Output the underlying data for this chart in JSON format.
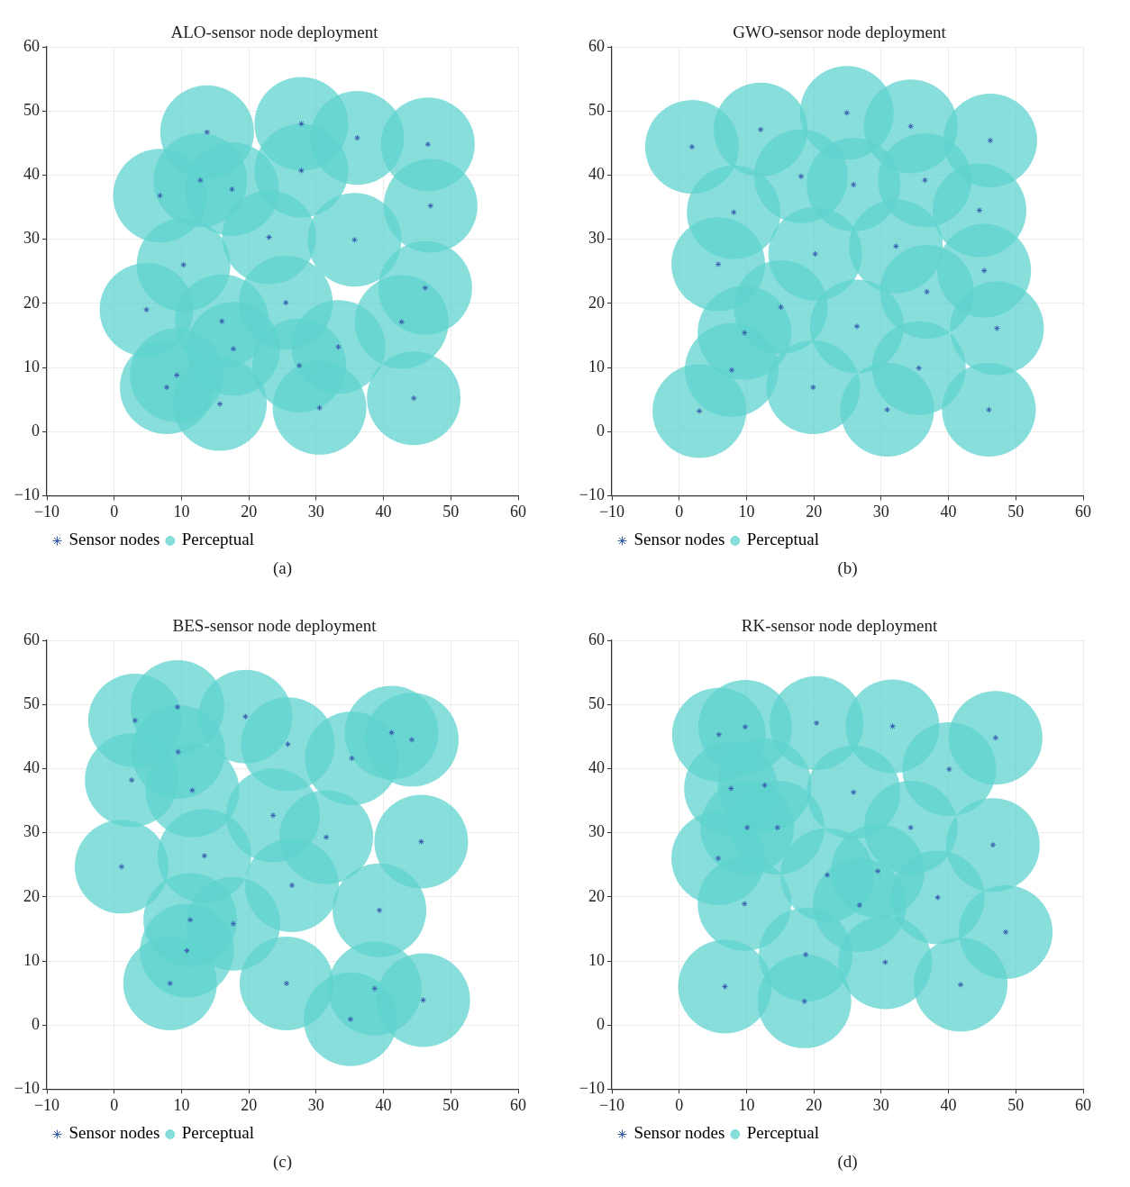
{
  "chart_data": [
    {
      "type": "scatter",
      "title": "ALO-sensor node deployment",
      "annotations": [
        "(a)"
      ],
      "xlim": [
        -10,
        60
      ],
      "ylim": [
        -10,
        60
      ],
      "xticks": [
        -10,
        0,
        10,
        20,
        30,
        40,
        50,
        60
      ],
      "yticks": [
        -10,
        0,
        10,
        20,
        30,
        40,
        50,
        60
      ],
      "grid": true,
      "legend": "bottom left",
      "x": [
        13.8,
        27.8,
        36.1,
        46.6,
        12.8,
        6.8,
        17.5,
        27.8,
        47.0,
        23.0,
        35.7,
        10.3,
        4.8,
        25.5,
        46.2,
        16.0,
        42.7,
        17.7,
        33.3,
        27.5,
        9.3,
        7.8,
        15.7,
        30.5,
        44.5
      ],
      "series": [
        {
          "name": "Sensor nodes",
          "type": "scatter",
          "marker": "cross",
          "color": "#3a5fb0",
          "values": [
            46.7,
            48.0,
            45.8,
            44.8,
            39.2,
            36.8,
            37.8,
            40.7,
            35.2,
            30.3,
            29.9,
            26.0,
            19.0,
            20.1,
            22.4,
            17.2,
            17.1,
            12.9,
            13.2,
            10.3,
            8.8,
            6.9,
            4.3,
            3.7,
            5.2
          ]
        },
        {
          "name": "Perceptual",
          "type": "bubble",
          "marker": "circle",
          "color": "#5fd3cd",
          "values": [
            46.7,
            48.0,
            45.8,
            44.8,
            39.2,
            36.8,
            37.8,
            40.7,
            35.2,
            30.3,
            29.9,
            26.0,
            19.0,
            20.1,
            22.4,
            17.2,
            17.1,
            12.9,
            13.2,
            10.3,
            8.8,
            6.9,
            4.3,
            3.7,
            5.2
          ],
          "sizes": [
            1,
            1,
            1,
            1,
            1,
            1,
            1,
            1,
            1,
            1,
            1,
            1,
            1,
            1,
            1,
            1,
            1,
            1,
            1,
            1,
            1,
            1,
            1,
            1,
            1
          ]
        }
      ]
    },
    {
      "type": "scatter",
      "title": "GWO-sensor node deployment",
      "annotations": [
        "(b)"
      ],
      "xlim": [
        -10,
        60
      ],
      "ylim": [
        -10,
        60
      ],
      "xticks": [
        -10,
        0,
        10,
        20,
        30,
        40,
        50,
        60
      ],
      "yticks": [
        -10,
        0,
        10,
        20,
        30,
        40,
        50,
        60
      ],
      "grid": true,
      "legend": "bottom left",
      "x": [
        1.9,
        12.1,
        24.9,
        34.4,
        46.2,
        18.1,
        25.9,
        36.5,
        8.1,
        44.6,
        20.2,
        32.2,
        5.8,
        45.3,
        36.8,
        15.1,
        26.4,
        47.2,
        9.7,
        7.8,
        35.6,
        19.9,
        3.0,
        30.9,
        46.0
      ],
      "series": [
        {
          "name": "Sensor nodes",
          "type": "scatter",
          "marker": "cross",
          "color": "#3a5fb0",
          "values": [
            44.4,
            47.1,
            49.7,
            47.6,
            45.4,
            39.8,
            38.5,
            39.2,
            34.2,
            34.5,
            27.7,
            28.9,
            26.1,
            25.1,
            21.8,
            19.4,
            16.4,
            16.1,
            15.4,
            9.6,
            9.9,
            6.9,
            3.2,
            3.4,
            3.4
          ]
        },
        {
          "name": "Perceptual",
          "type": "bubble",
          "marker": "circle",
          "color": "#5fd3cd",
          "values": [
            44.4,
            47.1,
            49.7,
            47.6,
            45.4,
            39.8,
            38.5,
            39.2,
            34.2,
            34.5,
            27.7,
            28.9,
            26.1,
            25.1,
            21.8,
            19.4,
            16.4,
            16.1,
            15.4,
            9.6,
            9.9,
            6.9,
            3.2,
            3.4,
            3.4
          ],
          "sizes": [
            1,
            1,
            1,
            1,
            1,
            1,
            1,
            1,
            1,
            1,
            1,
            1,
            1,
            1,
            1,
            1,
            1,
            1,
            1,
            1,
            1,
            1,
            1,
            1,
            1
          ]
        }
      ]
    },
    {
      "type": "scatter",
      "title": "BES-sensor node deployment",
      "annotations": [
        "(c)"
      ],
      "xlim": [
        -10,
        60
      ],
      "ylim": [
        -10,
        60
      ],
      "xticks": [
        -10,
        0,
        10,
        20,
        30,
        40,
        50,
        60
      ],
      "yticks": [
        -10,
        0,
        10,
        20,
        30,
        40,
        50,
        60
      ],
      "grid": true,
      "legend": "bottom left",
      "x": [
        3.1,
        9.4,
        19.5,
        25.8,
        35.3,
        41.2,
        44.2,
        9.5,
        2.6,
        11.6,
        23.6,
        31.5,
        45.6,
        1.1,
        13.4,
        26.4,
        39.4,
        11.3,
        17.7,
        10.8,
        8.3,
        25.6,
        38.7,
        45.9,
        35.1
      ],
      "series": [
        {
          "name": "Sensor nodes",
          "type": "scatter",
          "marker": "cross",
          "color": "#3a5fb0",
          "values": [
            47.5,
            49.6,
            48.1,
            43.8,
            41.6,
            45.6,
            44.5,
            42.6,
            38.2,
            36.6,
            32.7,
            29.3,
            28.6,
            24.7,
            26.4,
            21.8,
            17.9,
            16.4,
            15.8,
            11.6,
            6.5,
            6.5,
            5.7,
            3.9,
            0.9
          ]
        },
        {
          "name": "Perceptual",
          "type": "bubble",
          "marker": "circle",
          "color": "#5fd3cd",
          "values": [
            47.5,
            49.6,
            48.1,
            43.8,
            41.6,
            45.6,
            44.5,
            42.6,
            38.2,
            36.6,
            32.7,
            29.3,
            28.6,
            24.7,
            26.4,
            21.8,
            17.9,
            16.4,
            15.8,
            11.6,
            6.5,
            6.5,
            5.7,
            3.9,
            0.9
          ],
          "sizes": [
            1,
            1,
            1,
            1,
            1,
            1,
            1,
            1,
            1,
            1,
            1,
            1,
            1,
            1,
            1,
            1,
            1,
            1,
            1,
            1,
            1,
            1,
            1,
            1,
            1
          ]
        }
      ]
    },
    {
      "type": "scatter",
      "title": "RK-sensor node deployment",
      "annotations": [
        "(d)"
      ],
      "xlim": [
        -10,
        60
      ],
      "ylim": [
        -10,
        60
      ],
      "xticks": [
        -10,
        0,
        10,
        20,
        30,
        40,
        50,
        60
      ],
      "yticks": [
        -10,
        0,
        10,
        20,
        30,
        40,
        50,
        60
      ],
      "grid": true,
      "legend": "bottom left",
      "x": [
        5.9,
        9.8,
        20.4,
        31.7,
        47.0,
        40.1,
        7.7,
        12.7,
        25.9,
        10.1,
        14.6,
        34.4,
        46.6,
        5.8,
        22.0,
        29.5,
        9.7,
        26.8,
        38.4,
        48.5,
        18.8,
        30.6,
        6.8,
        41.8,
        18.6
      ],
      "series": [
        {
          "name": "Sensor nodes",
          "type": "scatter",
          "marker": "cross",
          "color": "#3a5fb0",
          "values": [
            45.3,
            46.5,
            47.1,
            46.6,
            44.8,
            39.9,
            36.9,
            37.4,
            36.3,
            30.8,
            30.8,
            30.8,
            28.1,
            26.0,
            23.4,
            24.0,
            18.9,
            18.7,
            19.9,
            14.5,
            11.0,
            9.8,
            6.0,
            6.3,
            3.7
          ]
        },
        {
          "name": "Perceptual",
          "type": "bubble",
          "marker": "circle",
          "color": "#5fd3cd",
          "values": [
            45.3,
            46.5,
            47.1,
            46.6,
            44.8,
            39.9,
            36.9,
            37.4,
            36.3,
            30.8,
            30.8,
            30.8,
            28.1,
            26.0,
            23.4,
            24.0,
            18.9,
            18.7,
            19.9,
            14.5,
            11.0,
            9.8,
            6.0,
            6.3,
            3.7
          ],
          "sizes": [
            1,
            1,
            1,
            1,
            1,
            1,
            1,
            1,
            1,
            1,
            1,
            1,
            1,
            1,
            1,
            1,
            1,
            1,
            1,
            1,
            1,
            1,
            1,
            1,
            1
          ]
        }
      ]
    }
  ]
}
